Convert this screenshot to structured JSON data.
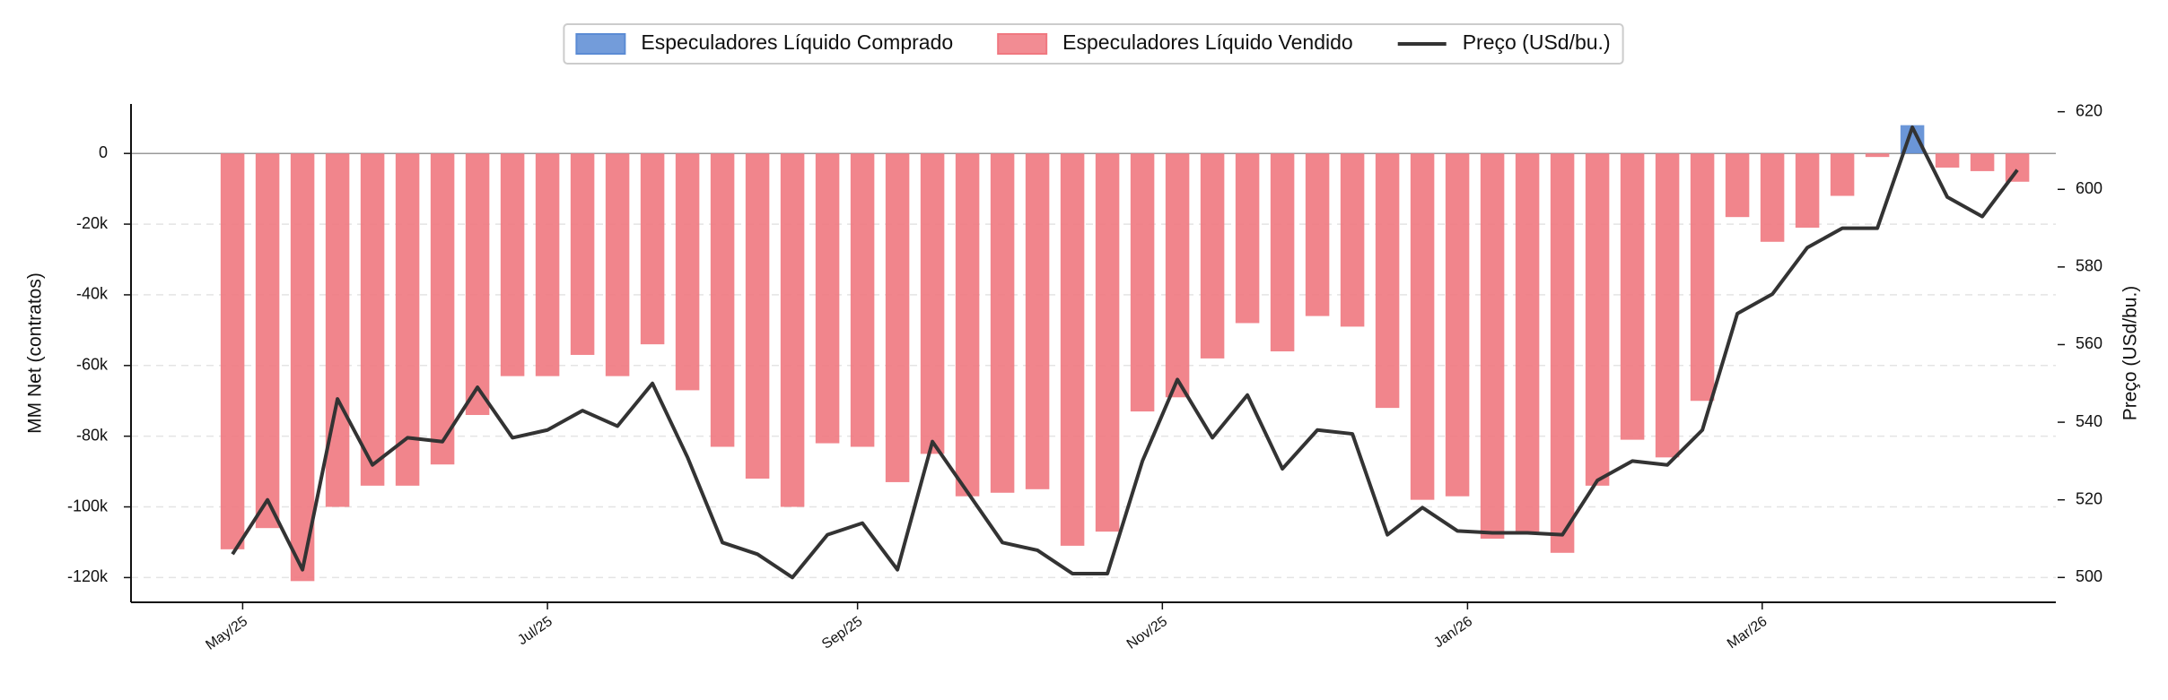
{
  "chart_data": {
    "type": "bar",
    "y_label": "MM Net (contratos)",
    "y2_label": "Preço (USd/bu.)",
    "series": [
      {
        "name": "Especuladores Líquido Comprado",
        "color": "#5b8bd4",
        "type": "bar",
        "values": [
          null,
          null,
          null,
          null,
          null,
          null,
          null,
          null,
          null,
          null,
          null,
          null,
          null,
          null,
          null,
          null,
          null,
          null,
          null,
          null,
          null,
          null,
          null,
          null,
          null,
          null,
          null,
          null,
          null,
          null,
          null,
          null,
          null,
          null,
          null,
          null,
          null,
          null,
          null,
          null,
          null,
          null,
          null,
          null,
          null,
          null,
          null,
          null,
          8000,
          null,
          null,
          null
        ]
      },
      {
        "name": "Especuladores Líquido Vendido",
        "color": "#f07880",
        "type": "bar",
        "values": [
          -112000,
          -106000,
          -121000,
          -100000,
          -94000,
          -94000,
          -88000,
          -74000,
          -63000,
          -63000,
          -57000,
          -63000,
          -54000,
          -67000,
          -83000,
          -92000,
          -100000,
          -82000,
          -83000,
          -93000,
          -85000,
          -97000,
          -96000,
          -95000,
          -111000,
          -107000,
          -73000,
          -69000,
          -58000,
          -48000,
          -56000,
          -46000,
          -49000,
          -72000,
          -98000,
          -97000,
          -109000,
          -107000,
          -113000,
          -94000,
          -81000,
          -86000,
          -70000,
          -18000,
          -25000,
          -21000,
          -12000,
          -1000,
          null,
          -4000,
          -5000,
          -8000
        ]
      },
      {
        "name": "Preço (USd/bu.)",
        "color": "#333333",
        "type": "line",
        "axis": "y2",
        "values": [
          506,
          520,
          502,
          546,
          529,
          536,
          535,
          549,
          536,
          538,
          543,
          539,
          550,
          531,
          509,
          506,
          500,
          511,
          514,
          502,
          535,
          522,
          509,
          507,
          501,
          501,
          530,
          551,
          536,
          547,
          528,
          538,
          537,
          511,
          518,
          512,
          511.5,
          511.5,
          511,
          525,
          530,
          529,
          538,
          568,
          573,
          585,
          590,
          590,
          616,
          598,
          593,
          605
        ]
      }
    ],
    "xlim": [
      -2.9,
      52.1
    ],
    "xticks": [
      {
        "value": 0.29,
        "label": "May/25"
      },
      {
        "value": 9.0,
        "label": "Jul/25"
      },
      {
        "value": 17.86,
        "label": "Sep/25"
      },
      {
        "value": 26.57,
        "label": "Nov/25"
      },
      {
        "value": 35.29,
        "label": "Jan/26"
      },
      {
        "value": 43.71,
        "label": "Mar/26"
      }
    ],
    "ylim": [
      -127000,
      14000
    ],
    "yticks": [
      {
        "value": -120000,
        "label": "-120k"
      },
      {
        "value": -100000,
        "label": "-100k"
      },
      {
        "value": -80000,
        "label": "-80k"
      },
      {
        "value": -60000,
        "label": "-60k"
      },
      {
        "value": -40000,
        "label": "-40k"
      },
      {
        "value": -20000,
        "label": "-20k"
      },
      0
    ],
    "y2lim": [
      493.6,
      622
    ],
    "y2ticks": [
      500,
      520,
      540,
      560,
      580,
      600,
      620
    ],
    "grid": true,
    "legend": "top"
  }
}
